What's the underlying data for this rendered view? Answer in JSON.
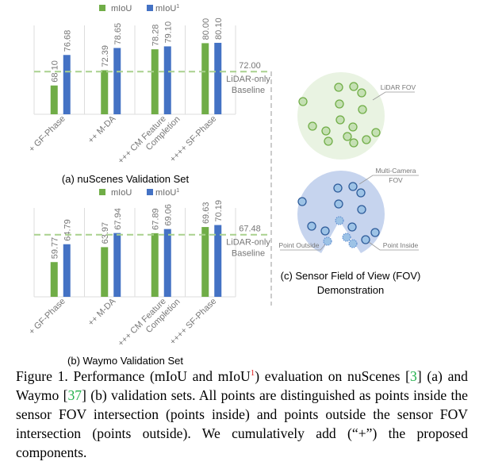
{
  "chart_data": [
    {
      "type": "bar",
      "title": "(a) nuScenes Validation Set",
      "categories": [
        "+ GF-Phase",
        "++ M-DA",
        "+++ CM Feature Completion",
        "++++ SF-Phase"
      ],
      "series": [
        {
          "name": "mIoU",
          "values": [
            68.1,
            72.39,
            78.28,
            80.0
          ],
          "labels": [
            "68.10",
            "72.39",
            "78.28",
            "80.00"
          ]
        },
        {
          "name": "mIoU",
          "name_sup": "1",
          "values": [
            76.68,
            78.65,
            79.1,
            80.1
          ],
          "labels": [
            "76.68",
            "78.65",
            "79.10",
            "80.10"
          ]
        }
      ],
      "baseline": {
        "value": 72.0,
        "value_label": "72.00",
        "label_line1": "LiDAR-only",
        "label_line2": "Baseline"
      },
      "ylim": [
        60,
        85
      ],
      "grid": "vertical",
      "legend": "top"
    },
    {
      "type": "bar",
      "title": "(b) Waymo Validation Set",
      "categories": [
        "+ GF-Phase",
        "++ M-DA",
        "+++ CM Feature Completion",
        "++++ SF-Phase"
      ],
      "series": [
        {
          "name": "mIoU",
          "values": [
            59.77,
            63.97,
            67.89,
            69.63
          ],
          "labels": [
            "59.77",
            "63.97",
            "67.89",
            "69.63"
          ]
        },
        {
          "name": "mIoU",
          "name_sup": "1",
          "values": [
            64.79,
            67.94,
            69.06,
            70.19
          ],
          "labels": [
            "64.79",
            "67.94",
            "69.06",
            "70.19"
          ]
        }
      ],
      "baseline": {
        "value": 67.48,
        "value_label": "67.48",
        "label_line1": "LiDAR-only",
        "label_line2": "Baseline"
      },
      "ylim": [
        50,
        75
      ],
      "grid": "vertical",
      "legend": "top"
    }
  ],
  "colors": {
    "mIoU": "#70ad47",
    "mIoU1": "#4472c4",
    "baseline": "#a9d18e",
    "lidar_fov": "#e9f3e2",
    "camera_fov": "#c6d4ee",
    "citation": "#22b14c",
    "superscript": "#e02020"
  },
  "fov_panel": {
    "lidar_label": "LiDAR FOV",
    "camera_label_line1": "Multi-Camera",
    "camera_label_line2": "FOV",
    "point_outside_label": "Point Outside",
    "point_inside_label": "Point Inside",
    "title_line1": "(c) Sensor Field of View (FOV)",
    "title_line2": "Demonstration"
  },
  "caption": {
    "p1": "Figure 1. Performance (mIoU and mIoU",
    "sup": "1",
    "p2": ") evaluation on nuScenes [",
    "cite1": "3",
    "p3": "] (a) and Waymo [",
    "cite2": "37",
    "p4": "] (b) validation sets.  All points are distinguished as points inside the sensor FOV intersection (points inside) and points outside the sensor FOV intersection (points outside). We cumulatively add (“+”) the proposed components."
  }
}
